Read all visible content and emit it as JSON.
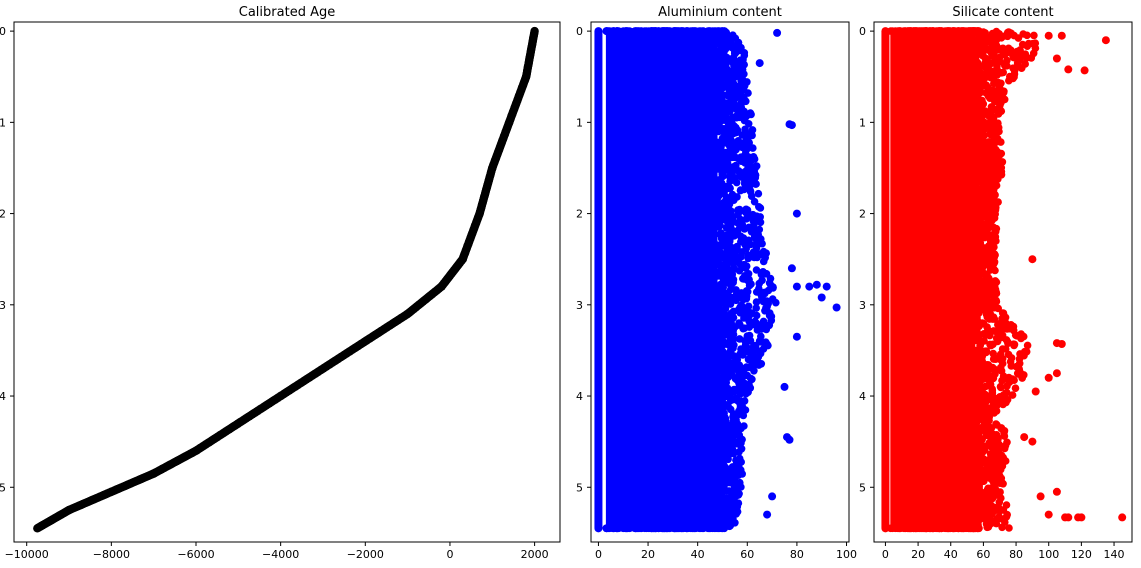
{
  "chart_data": [
    {
      "type": "scatter",
      "title": "Calibrated Age",
      "xlabel": "",
      "ylabel": "",
      "xlim": [
        -10300,
        2600
      ],
      "ylim": [
        5.6,
        -0.1
      ],
      "y_inverted": true,
      "xticks": [
        -10000,
        -8000,
        -6000,
        -4000,
        -2000,
        0,
        2000
      ],
      "yticks": [
        0,
        1,
        2,
        3,
        4,
        5
      ],
      "grid": false,
      "color": "#000000",
      "series": [
        {
          "points": [
            {
              "x": 2000,
              "y": 0.0
            },
            {
              "x": 1800,
              "y": 0.5
            },
            {
              "x": 1400,
              "y": 1.0
            },
            {
              "x": 1000,
              "y": 1.5
            },
            {
              "x": 700,
              "y": 2.0
            },
            {
              "x": 300,
              "y": 2.5
            },
            {
              "x": -200,
              "y": 2.8
            },
            {
              "x": -1000,
              "y": 3.1
            },
            {
              "x": -2000,
              "y": 3.4
            },
            {
              "x": -3000,
              "y": 3.7
            },
            {
              "x": -4000,
              "y": 4.0
            },
            {
              "x": -5000,
              "y": 4.3
            },
            {
              "x": -6000,
              "y": 4.6
            },
            {
              "x": -7000,
              "y": 4.85
            },
            {
              "x": -8000,
              "y": 5.05
            },
            {
              "x": -9000,
              "y": 5.25
            },
            {
              "x": -9750,
              "y": 5.45
            }
          ]
        }
      ]
    },
    {
      "type": "scatter",
      "title": "Aluminium content",
      "xlabel": "",
      "ylabel": "",
      "xlim": [
        -3,
        101
      ],
      "ylim": [
        5.6,
        -0.1
      ],
      "y_inverted": true,
      "xticks": [
        0,
        20,
        40,
        60,
        80,
        100
      ],
      "yticks": [
        0,
        1,
        2,
        3,
        4,
        5
      ],
      "grid": false,
      "color": "#0000ff",
      "series": [
        {
          "band": {
            "x_min": 0,
            "x_max": 48,
            "y_min": 0.0,
            "y_max": 5.45
          },
          "left_line_x": 0,
          "edge_envelope": [
            {
              "y": 0.0,
              "x": 58
            },
            {
              "y": 0.5,
              "x": 60
            },
            {
              "y": 1.0,
              "x": 62
            },
            {
              "y": 1.5,
              "x": 64
            },
            {
              "y": 2.0,
              "x": 66
            },
            {
              "y": 2.5,
              "x": 68
            },
            {
              "y": 3.0,
              "x": 72
            },
            {
              "y": 3.5,
              "x": 68
            },
            {
              "y": 4.0,
              "x": 60
            },
            {
              "y": 4.5,
              "x": 58
            },
            {
              "y": 5.0,
              "x": 58
            },
            {
              "y": 5.45,
              "x": 55
            }
          ],
          "outliers": [
            {
              "x": 72,
              "y": 0.02
            },
            {
              "x": 65,
              "y": 0.35
            },
            {
              "x": 78,
              "y": 1.03
            },
            {
              "x": 77,
              "y": 1.02
            },
            {
              "x": 80,
              "y": 2.0
            },
            {
              "x": 78,
              "y": 2.6
            },
            {
              "x": 80,
              "y": 2.8
            },
            {
              "x": 85,
              "y": 2.8
            },
            {
              "x": 88,
              "y": 2.78
            },
            {
              "x": 92,
              "y": 2.8
            },
            {
              "x": 96,
              "y": 3.03
            },
            {
              "x": 90,
              "y": 2.92
            },
            {
              "x": 80,
              "y": 3.35
            },
            {
              "x": 76,
              "y": 4.45
            },
            {
              "x": 77,
              "y": 4.48
            },
            {
              "x": 75,
              "y": 3.9
            },
            {
              "x": 70,
              "y": 5.1
            },
            {
              "x": 68,
              "y": 5.3
            }
          ]
        }
      ]
    },
    {
      "type": "scatter",
      "title": "Silicate content",
      "xlabel": "",
      "ylabel": "",
      "xlim": [
        -7,
        151
      ],
      "ylim": [
        5.6,
        -0.1
      ],
      "y_inverted": true,
      "xticks": [
        0,
        20,
        40,
        60,
        80,
        100,
        120,
        140
      ],
      "yticks": [
        0,
        1,
        2,
        3,
        4,
        5
      ],
      "grid": false,
      "color": "#ff0000",
      "series": [
        {
          "band": {
            "x_min": 0,
            "x_max": 55,
            "y_min": 0.0,
            "y_max": 5.45
          },
          "left_line_x": 0,
          "edge_envelope": [
            {
              "y": 0.0,
              "x": 95
            },
            {
              "y": 0.3,
              "x": 90
            },
            {
              "y": 0.6,
              "x": 75
            },
            {
              "y": 1.0,
              "x": 70
            },
            {
              "y": 1.5,
              "x": 72
            },
            {
              "y": 2.0,
              "x": 68
            },
            {
              "y": 2.5,
              "x": 68
            },
            {
              "y": 3.0,
              "x": 68
            },
            {
              "y": 3.45,
              "x": 90
            },
            {
              "y": 3.8,
              "x": 85
            },
            {
              "y": 4.2,
              "x": 70
            },
            {
              "y": 4.5,
              "x": 75
            },
            {
              "y": 5.0,
              "x": 72
            },
            {
              "y": 5.45,
              "x": 78
            }
          ],
          "outliers": [
            {
              "x": 135,
              "y": 0.1
            },
            {
              "x": 122,
              "y": 0.43
            },
            {
              "x": 112,
              "y": 0.42
            },
            {
              "x": 105,
              "y": 0.3
            },
            {
              "x": 100,
              "y": 0.05
            },
            {
              "x": 108,
              "y": 0.05
            },
            {
              "x": 90,
              "y": 2.5
            },
            {
              "x": 105,
              "y": 3.42
            },
            {
              "x": 108,
              "y": 3.43
            },
            {
              "x": 105,
              "y": 3.75
            },
            {
              "x": 100,
              "y": 3.8
            },
            {
              "x": 92,
              "y": 3.95
            },
            {
              "x": 85,
              "y": 4.45
            },
            {
              "x": 90,
              "y": 4.5
            },
            {
              "x": 95,
              "y": 5.1
            },
            {
              "x": 105,
              "y": 5.05
            },
            {
              "x": 100,
              "y": 5.3
            },
            {
              "x": 110,
              "y": 5.33
            },
            {
              "x": 112,
              "y": 5.33
            },
            {
              "x": 118,
              "y": 5.33
            },
            {
              "x": 145,
              "y": 5.33
            },
            {
              "x": 120,
              "y": 5.33
            }
          ]
        }
      ]
    }
  ]
}
